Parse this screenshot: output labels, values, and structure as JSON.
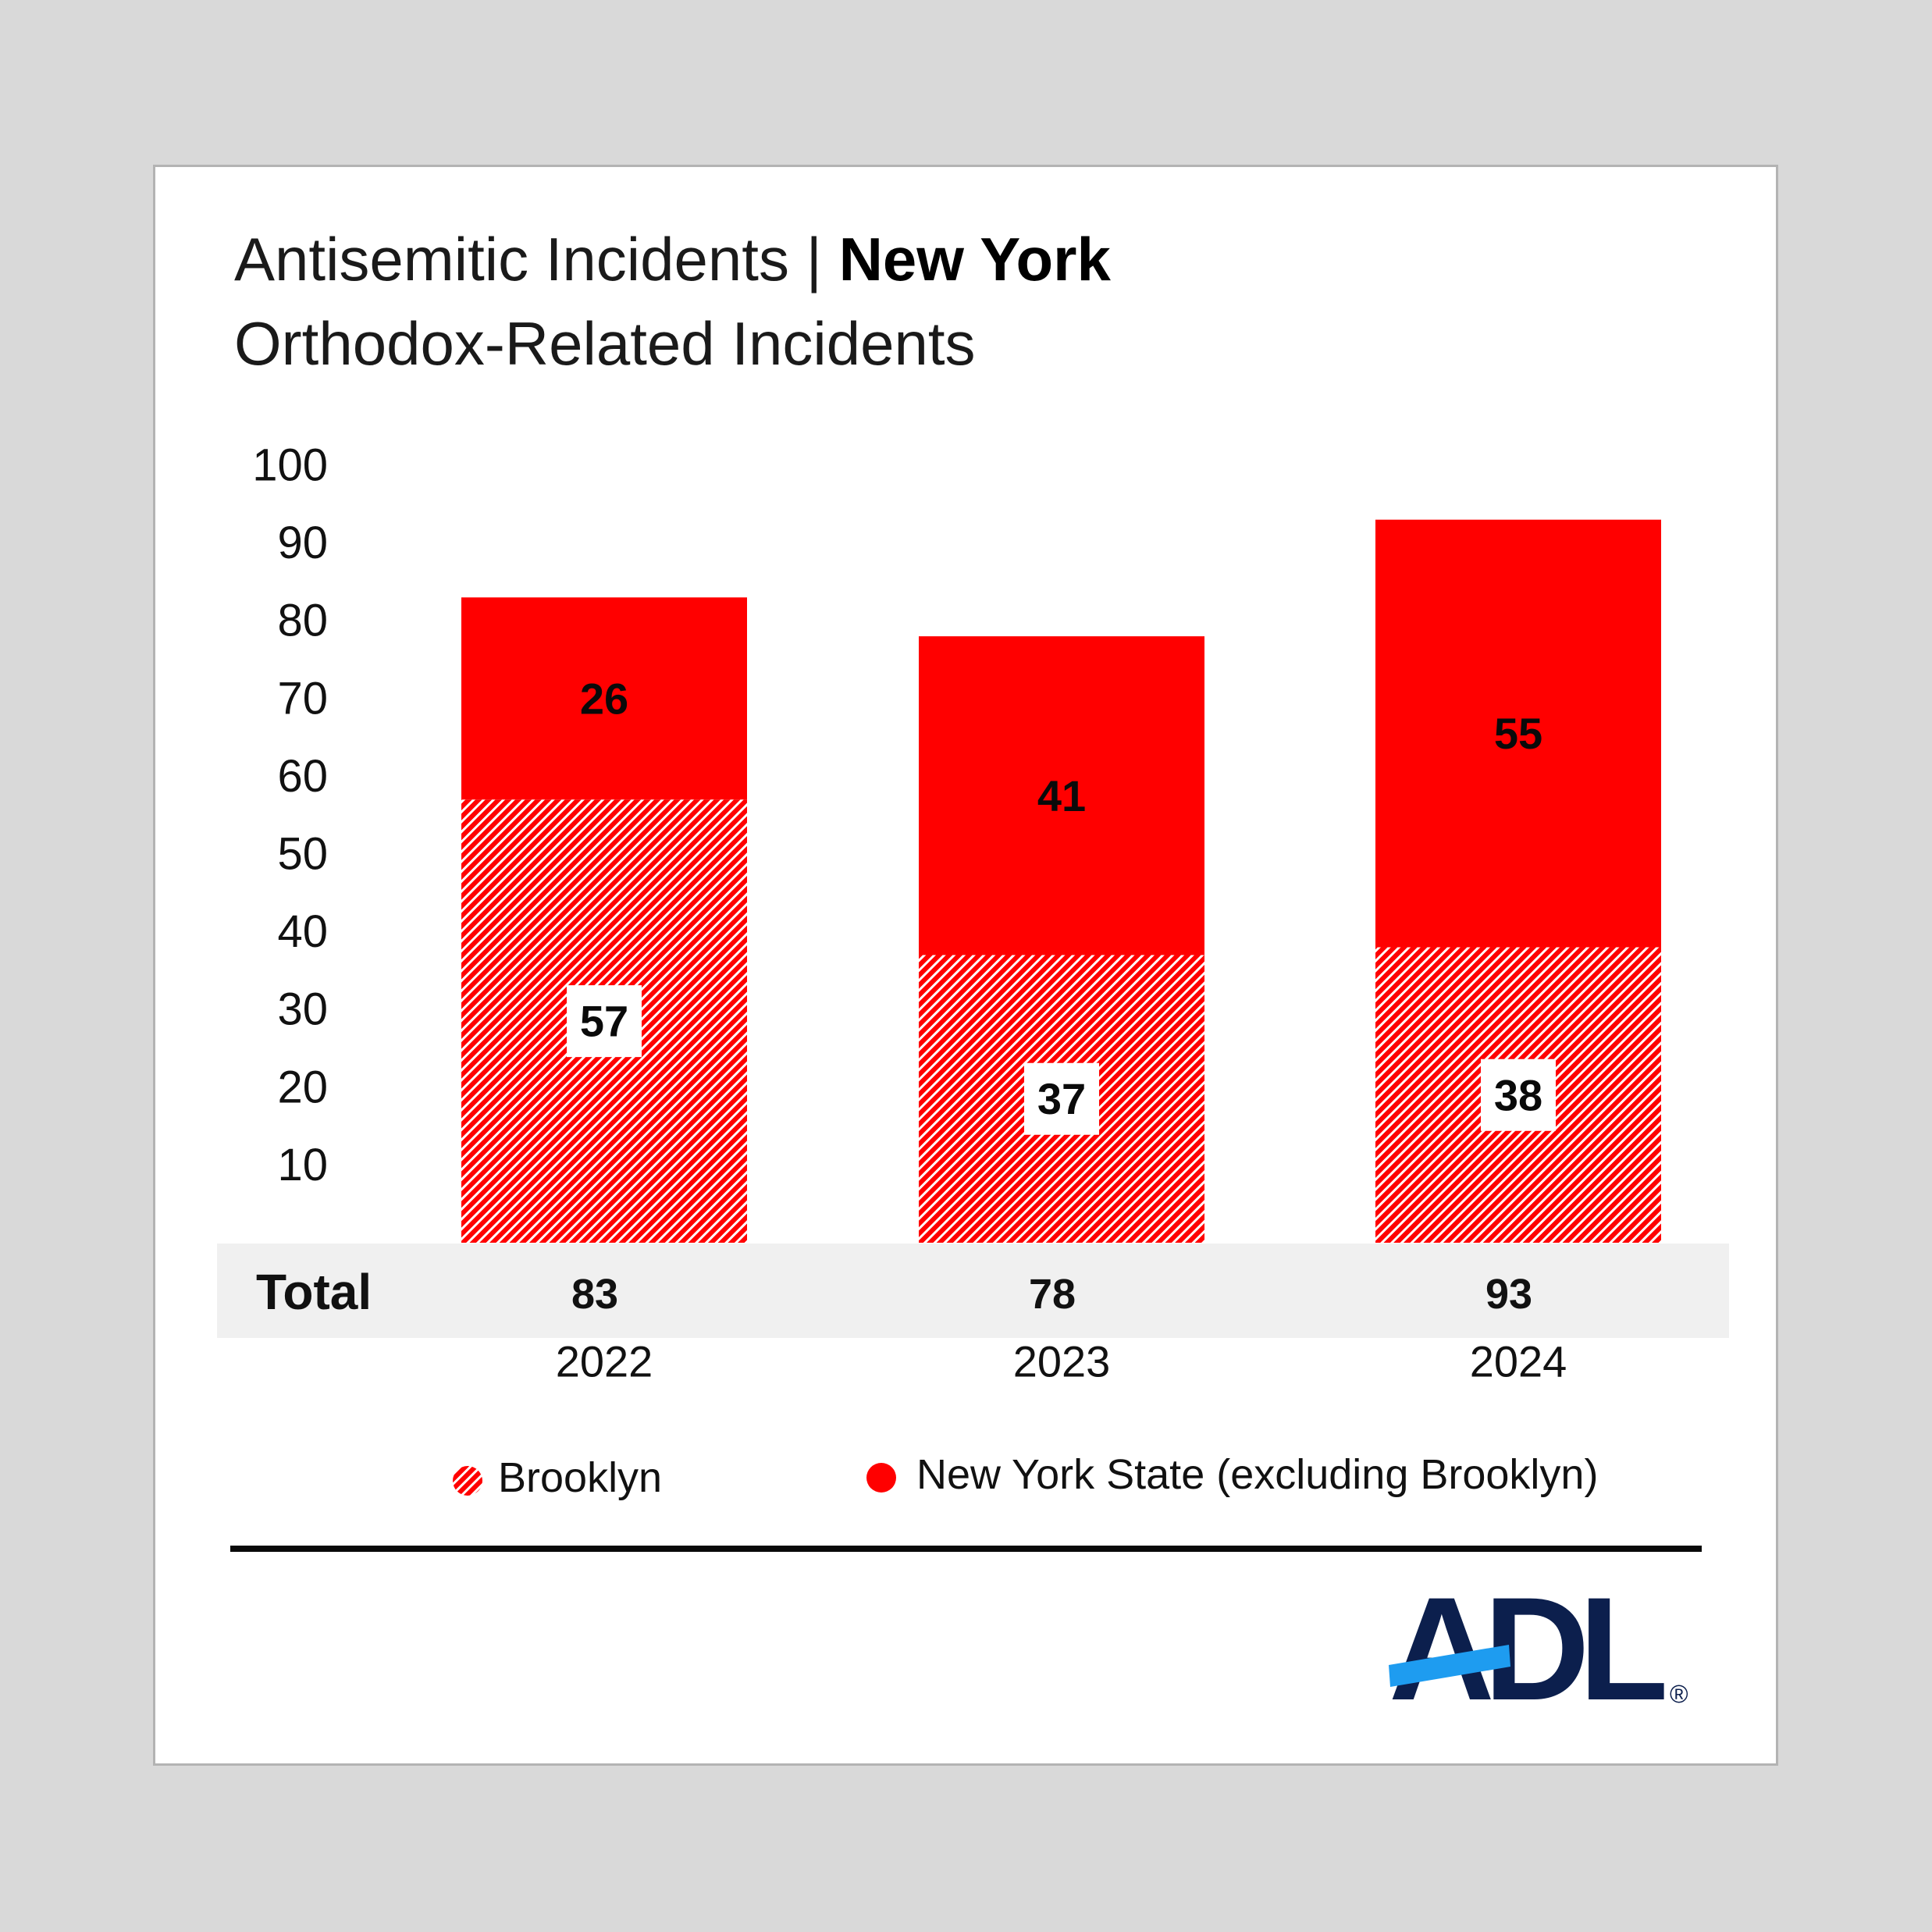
{
  "header": {
    "title_regular": "Antisemitic Incidents | ",
    "title_bold": "New York",
    "subtitle": "Orthodox-Related Incidents"
  },
  "chart_data": {
    "type": "bar",
    "stacked": true,
    "categories": [
      "2022",
      "2023",
      "2024"
    ],
    "series": [
      {
        "name": "Brooklyn",
        "values": [
          57,
          37,
          38
        ],
        "color": "#ff0000",
        "pattern": "diagonal-hatch"
      },
      {
        "name": "New York State (excluding Brooklyn)",
        "values": [
          26,
          41,
          55
        ],
        "color": "#ff0000"
      }
    ],
    "totals": [
      83,
      78,
      93
    ],
    "total_label": "Total",
    "yticks": [
      10,
      20,
      30,
      40,
      50,
      60,
      70,
      80,
      90,
      100
    ],
    "ylim": [
      0,
      100
    ],
    "grid": false,
    "legend_position": "bottom"
  },
  "legend": {
    "brooklyn": "Brooklyn",
    "nys": "New York State (excluding Brooklyn)"
  },
  "logo": {
    "text": "ADL",
    "registered": "®",
    "text_color": "#0c1f4d",
    "accent_color": "#1e9cf0"
  }
}
